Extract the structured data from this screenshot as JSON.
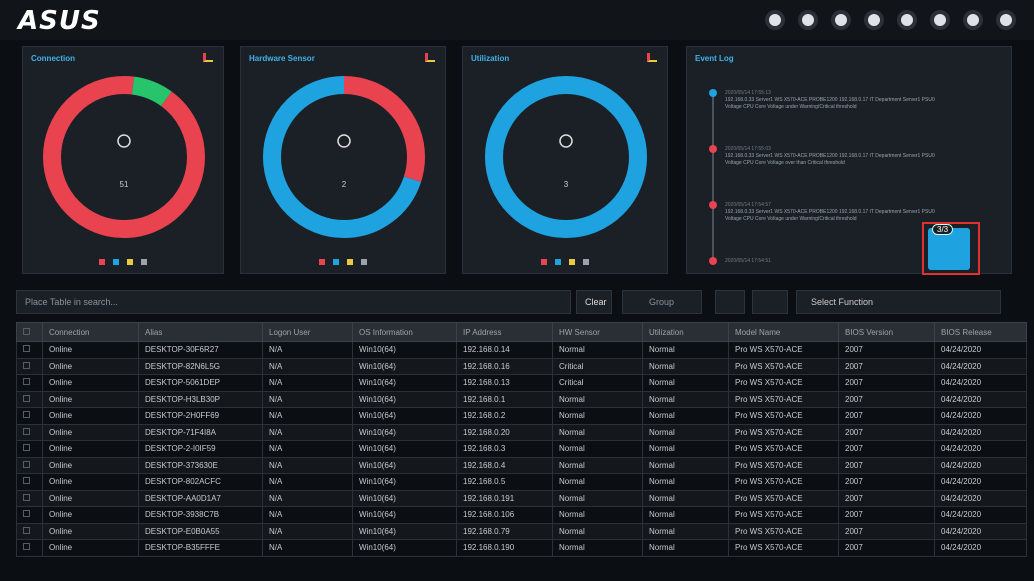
{
  "header": {
    "logo": "ASUS"
  },
  "panels": [
    {
      "title": "Connection",
      "count": 51,
      "segments": [
        {
          "color": "#e8434f",
          "value": 92
        },
        {
          "color": "#27c46b",
          "value": 8
        }
      ],
      "start": 0.1
    },
    {
      "title": "Hardware Sensor",
      "count": 2,
      "segments": [
        {
          "color": "#e8434f",
          "value": 30
        },
        {
          "color": "#1fa3e0",
          "value": 70
        }
      ],
      "start": 0
    },
    {
      "title": "Utilization",
      "count": 3,
      "segments": [
        {
          "color": "#1fa3e0",
          "value": 100
        }
      ],
      "start": 0
    }
  ],
  "event_log": {
    "title": "Event Log",
    "entries": [
      {
        "time": "2020/05/14 17:55:13",
        "text": "192.168.0.33 Server1 WS X570-ACE PROBE1200 192.168.0.17 IT Department Server1 PSU0",
        "detail": "Voltage CPU Core Voltage under Warning/Critical threshold"
      },
      {
        "time": "2020/05/14 17:55:03",
        "text": "192.168.0.33 Server1 WS X570-ACE PROBE1200 192.168.0.17 IT Department Server1 PSU0",
        "detail": "Voltage CPU Core Voltage over than Critical threshold"
      },
      {
        "time": "2020/05/14 17:54:57",
        "text": "192.168.0.33 Server1 WS X570-ACE PROBE1200 192.168.0.17 IT Department Server1 PSU0",
        "detail": "Voltage CPU Core Voltage under Warning/Critical threshold"
      },
      {
        "time": "2020/05/14 17:54:51"
      }
    ],
    "badge": "3/3"
  },
  "toolbar": {
    "search_placeholder": "Place Table in search...",
    "clear": "Clear",
    "group": "Group",
    "select_function": "Select Function"
  },
  "table": {
    "columns": [
      "Connection",
      "Alias",
      "Logon User",
      "OS Information",
      "IP Address",
      "HW Sensor",
      "Utilization",
      "Model Name",
      "BIOS Version",
      "BIOS Release"
    ],
    "rows": [
      [
        "Online",
        "DESKTOP-30F6R27",
        "N/A",
        "Win10(64)",
        "192.168.0.14",
        "Normal",
        "Normal",
        "Pro WS X570-ACE",
        "2007",
        "04/24/2020"
      ],
      [
        "Online",
        "DESKTOP-82N6L5G",
        "N/A",
        "Win10(64)",
        "192.168.0.16",
        "Critical",
        "Normal",
        "Pro WS X570-ACE",
        "2007",
        "04/24/2020"
      ],
      [
        "Online",
        "DESKTOP-5061DEP",
        "N/A",
        "Win10(64)",
        "192.168.0.13",
        "Critical",
        "Normal",
        "Pro WS X570-ACE",
        "2007",
        "04/24/2020"
      ],
      [
        "Online",
        "DESKTOP-H3LB30P",
        "N/A",
        "Win10(64)",
        "192.168.0.1",
        "Normal",
        "Normal",
        "Pro WS X570-ACE",
        "2007",
        "04/24/2020"
      ],
      [
        "Online",
        "DESKTOP-2H0FF69",
        "N/A",
        "Win10(64)",
        "192.168.0.2",
        "Normal",
        "Normal",
        "Pro WS X570-ACE",
        "2007",
        "04/24/2020"
      ],
      [
        "Online",
        "DESKTOP-71F4I8A",
        "N/A",
        "Win10(64)",
        "192.168.0.20",
        "Normal",
        "Normal",
        "Pro WS X570-ACE",
        "2007",
        "04/24/2020"
      ],
      [
        "Online",
        "DESKTOP-2-I0IF59",
        "N/A",
        "Win10(64)",
        "192.168.0.3",
        "Normal",
        "Normal",
        "Pro WS X570-ACE",
        "2007",
        "04/24/2020"
      ],
      [
        "Online",
        "DESKTOP-373630E",
        "N/A",
        "Win10(64)",
        "192.168.0.4",
        "Normal",
        "Normal",
        "Pro WS X570-ACE",
        "2007",
        "04/24/2020"
      ],
      [
        "Online",
        "DESKTOP-802ACFC",
        "N/A",
        "Win10(64)",
        "192.168.0.5",
        "Normal",
        "Normal",
        "Pro WS X570-ACE",
        "2007",
        "04/24/2020"
      ],
      [
        "Online",
        "DESKTOP-AA0D1A7",
        "N/A",
        "Win10(64)",
        "192.168.0.191",
        "Normal",
        "Normal",
        "Pro WS X570-ACE",
        "2007",
        "04/24/2020"
      ],
      [
        "Online",
        "DESKTOP-3938C7B",
        "N/A",
        "Win10(64)",
        "192.168.0.106",
        "Normal",
        "Normal",
        "Pro WS X570-ACE",
        "2007",
        "04/24/2020"
      ],
      [
        "Online",
        "DESKTOP-E0B0A55",
        "N/A",
        "Win10(64)",
        "192.168.0.79",
        "Normal",
        "Normal",
        "Pro WS X570-ACE",
        "2007",
        "04/24/2020"
      ],
      [
        "Online",
        "DESKTOP-B35FFFE",
        "N/A",
        "Win10(64)",
        "192.168.0.190",
        "Normal",
        "Normal",
        "Pro WS X570-ACE",
        "2007",
        "04/24/2020"
      ]
    ]
  }
}
